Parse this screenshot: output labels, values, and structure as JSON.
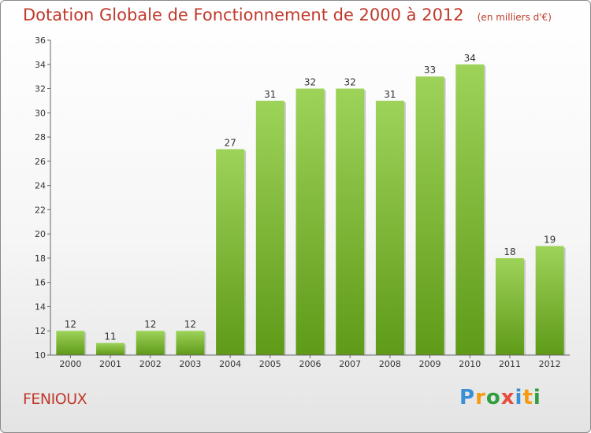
{
  "header": {
    "title": "Dotation Globale de Fonctionnement de 2000 à 2012",
    "subtitle": "(en milliers d'€)"
  },
  "footer": {
    "place": "FENIOUX",
    "logo": "Proxiti"
  },
  "colors": {
    "title": "#c0392b",
    "bar_top": "#9ed35a",
    "bar_bottom": "#5f9a18"
  },
  "chart_data": {
    "type": "bar",
    "title": "Dotation Globale de Fonctionnement de 2000 à 2012",
    "subtitle": "(en milliers d'€)",
    "categories": [
      "2000",
      "2001",
      "2002",
      "2003",
      "2004",
      "2005",
      "2006",
      "2007",
      "2008",
      "2009",
      "2010",
      "2011",
      "2012"
    ],
    "values": [
      12,
      11,
      12,
      12,
      27,
      31,
      32,
      32,
      31,
      33,
      34,
      18,
      19
    ],
    "ylim": [
      10,
      36
    ],
    "yticks": [
      10,
      12,
      14,
      16,
      18,
      20,
      22,
      24,
      26,
      28,
      30,
      32,
      34,
      36
    ],
    "grid": false
  }
}
